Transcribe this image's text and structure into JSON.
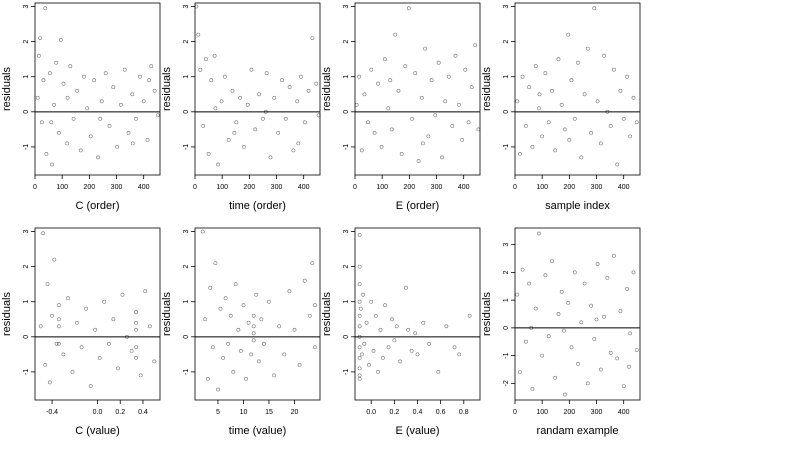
{
  "chart_data": [
    {
      "type": "scatter",
      "xlabel": "C (order)",
      "ylabel": "residuals",
      "xlim": [
        0,
        460
      ],
      "ylim": [
        -1.8,
        3.1
      ],
      "xticks": [
        0,
        100,
        200,
        300,
        400
      ],
      "yticks": [
        -1,
        0,
        1,
        2,
        3
      ],
      "hline": 0,
      "points": [
        [
          10,
          0.4
        ],
        [
          14,
          1.6
        ],
        [
          19,
          2.1
        ],
        [
          25,
          -0.3
        ],
        [
          31,
          0.9
        ],
        [
          38,
          2.95
        ],
        [
          42,
          -1.2
        ],
        [
          55,
          1.1
        ],
        [
          63,
          -1.5
        ],
        [
          70,
          0.2
        ],
        [
          78,
          1.4
        ],
        [
          88,
          -0.6
        ],
        [
          95,
          2.05
        ],
        [
          105,
          0.8
        ],
        [
          118,
          -0.9
        ],
        [
          130,
          1.3
        ],
        [
          142,
          -0.2
        ],
        [
          155,
          0.6
        ],
        [
          168,
          -1.1
        ],
        [
          180,
          1.0
        ],
        [
          192,
          0.1
        ],
        [
          205,
          -0.7
        ],
        [
          218,
          0.9
        ],
        [
          232,
          -1.3
        ],
        [
          246,
          0.3
        ],
        [
          260,
          1.1
        ],
        [
          274,
          -0.4
        ],
        [
          288,
          0.7
        ],
        [
          302,
          -1.0
        ],
        [
          316,
          0.2
        ],
        [
          330,
          1.2
        ],
        [
          344,
          -0.6
        ],
        [
          358,
          0.5
        ],
        [
          372,
          -0.2
        ],
        [
          386,
          1.0
        ],
        [
          400,
          0.3
        ],
        [
          414,
          -0.8
        ],
        [
          428,
          1.3
        ],
        [
          440,
          0.6
        ],
        [
          452,
          -0.1
        ],
        [
          60,
          -0.3
        ],
        [
          120,
          0.4
        ],
        [
          240,
          -0.2
        ],
        [
          360,
          -0.9
        ],
        [
          420,
          0.9
        ]
      ]
    },
    {
      "type": "scatter",
      "xlabel": "time (order)",
      "ylabel": "residuals",
      "xlim": [
        0,
        460
      ],
      "ylim": [
        -1.8,
        3.1
      ],
      "xticks": [
        0,
        100,
        200,
        300,
        400
      ],
      "yticks": [
        -1,
        0,
        1,
        2,
        3
      ],
      "hline": 0,
      "points": [
        [
          5,
          3.0
        ],
        [
          12,
          2.2
        ],
        [
          20,
          1.2
        ],
        [
          30,
          -0.4
        ],
        [
          40,
          1.5
        ],
        [
          50,
          -1.2
        ],
        [
          60,
          0.9
        ],
        [
          72,
          1.6
        ],
        [
          85,
          -1.5
        ],
        [
          98,
          0.3
        ],
        [
          110,
          1.0
        ],
        [
          124,
          -0.8
        ],
        [
          138,
          0.6
        ],
        [
          152,
          -0.3
        ],
        [
          166,
          0.4
        ],
        [
          180,
          -1.0
        ],
        [
          194,
          0.2
        ],
        [
          208,
          1.2
        ],
        [
          222,
          -0.5
        ],
        [
          236,
          0.5
        ],
        [
          250,
          -0.2
        ],
        [
          264,
          1.1
        ],
        [
          278,
          -1.3
        ],
        [
          292,
          0.4
        ],
        [
          306,
          -0.6
        ],
        [
          320,
          0.9
        ],
        [
          334,
          -0.2
        ],
        [
          348,
          0.7
        ],
        [
          362,
          -1.1
        ],
        [
          376,
          0.3
        ],
        [
          390,
          1.0
        ],
        [
          404,
          -0.3
        ],
        [
          418,
          0.6
        ],
        [
          432,
          2.1
        ],
        [
          446,
          0.8
        ],
        [
          455,
          -0.1
        ],
        [
          75,
          0.1
        ],
        [
          145,
          -0.6
        ],
        [
          260,
          0.0
        ],
        [
          380,
          -0.9
        ]
      ]
    },
    {
      "type": "scatter",
      "xlabel": "E (order)",
      "ylabel": "residuals",
      "xlim": [
        0,
        460
      ],
      "ylim": [
        -1.8,
        3.1
      ],
      "xticks": [
        0,
        100,
        200,
        300,
        400
      ],
      "yticks": [
        -1,
        0,
        1,
        2,
        3
      ],
      "hline": 0,
      "points": [
        [
          6,
          0.2
        ],
        [
          15,
          1.0
        ],
        [
          25,
          -1.1
        ],
        [
          35,
          0.5
        ],
        [
          48,
          -0.3
        ],
        [
          60,
          1.2
        ],
        [
          72,
          -0.6
        ],
        [
          85,
          0.8
        ],
        [
          98,
          -1.0
        ],
        [
          110,
          1.5
        ],
        [
          122,
          0.1
        ],
        [
          135,
          -0.5
        ],
        [
          148,
          2.2
        ],
        [
          160,
          0.6
        ],
        [
          172,
          -1.2
        ],
        [
          185,
          1.3
        ],
        [
          198,
          2.95
        ],
        [
          210,
          -0.2
        ],
        [
          222,
          1.1
        ],
        [
          234,
          -1.4
        ],
        [
          246,
          0.4
        ],
        [
          258,
          1.8
        ],
        [
          270,
          -0.7
        ],
        [
          282,
          0.9
        ],
        [
          295,
          -0.1
        ],
        [
          308,
          1.4
        ],
        [
          320,
          -1.3
        ],
        [
          332,
          0.3
        ],
        [
          345,
          1.0
        ],
        [
          358,
          -0.4
        ],
        [
          370,
          1.6
        ],
        [
          382,
          0.2
        ],
        [
          394,
          -0.8
        ],
        [
          406,
          1.2
        ],
        [
          418,
          -0.3
        ],
        [
          430,
          0.7
        ],
        [
          442,
          1.9
        ],
        [
          454,
          -0.5
        ],
        [
          130,
          0.9
        ],
        [
          250,
          -0.9
        ]
      ]
    },
    {
      "type": "scatter",
      "xlabel": "sample index",
      "ylabel": "residuals",
      "xlim": [
        0,
        460
      ],
      "ylim": [
        -1.8,
        3.1
      ],
      "xticks": [
        0,
        100,
        200,
        300,
        400
      ],
      "yticks": [
        -1,
        0,
        1,
        2,
        3
      ],
      "hline": 0,
      "points": [
        [
          8,
          0.3
        ],
        [
          18,
          -1.2
        ],
        [
          28,
          1.0
        ],
        [
          40,
          -0.4
        ],
        [
          52,
          0.7
        ],
        [
          64,
          -1.0
        ],
        [
          76,
          1.3
        ],
        [
          88,
          0.1
        ],
        [
          100,
          -0.7
        ],
        [
          112,
          1.1
        ],
        [
          124,
          -0.3
        ],
        [
          136,
          0.6
        ],
        [
          148,
          -1.1
        ],
        [
          160,
          1.5
        ],
        [
          172,
          0.2
        ],
        [
          184,
          -0.5
        ],
        [
          196,
          2.2
        ],
        [
          208,
          0.9
        ],
        [
          220,
          -0.2
        ],
        [
          232,
          1.4
        ],
        [
          244,
          -1.3
        ],
        [
          256,
          0.5
        ],
        [
          268,
          1.8
        ],
        [
          280,
          -0.6
        ],
        [
          292,
          2.95
        ],
        [
          304,
          0.3
        ],
        [
          316,
          -0.9
        ],
        [
          328,
          1.6
        ],
        [
          340,
          0.0
        ],
        [
          352,
          -0.4
        ],
        [
          364,
          1.2
        ],
        [
          376,
          -1.5
        ],
        [
          388,
          0.6
        ],
        [
          400,
          -0.2
        ],
        [
          412,
          1.0
        ],
        [
          424,
          -0.7
        ],
        [
          436,
          0.4
        ],
        [
          448,
          -0.3
        ],
        [
          90,
          0.5
        ],
        [
          200,
          -0.8
        ]
      ]
    },
    {
      "type": "scatter",
      "xlabel": "C (value)",
      "ylabel": "residuals",
      "xlim": [
        -0.55,
        0.55
      ],
      "ylim": [
        -1.8,
        3.1
      ],
      "xticks": [
        -0.4,
        0.0,
        0.2,
        0.4
      ],
      "xticklabels": [
        "-0.4",
        "0.0",
        "0.2",
        "0.4"
      ],
      "yticks": [
        -1,
        0,
        1,
        2,
        3
      ],
      "hline": 0,
      "points": [
        [
          -0.5,
          0.3
        ],
        [
          -0.48,
          2.95
        ],
        [
          -0.46,
          -0.8
        ],
        [
          -0.44,
          1.5
        ],
        [
          -0.42,
          -1.3
        ],
        [
          -0.4,
          0.6
        ],
        [
          -0.38,
          2.2
        ],
        [
          -0.36,
          -0.2
        ],
        [
          -0.34,
          0.9
        ],
        [
          -0.3,
          -0.5
        ],
        [
          -0.26,
          1.1
        ],
        [
          -0.22,
          -1.0
        ],
        [
          -0.18,
          0.4
        ],
        [
          -0.14,
          -0.3
        ],
        [
          -0.1,
          0.8
        ],
        [
          -0.06,
          -1.4
        ],
        [
          -0.02,
          0.2
        ],
        [
          0.02,
          -0.6
        ],
        [
          0.06,
          1.0
        ],
        [
          0.1,
          -0.2
        ],
        [
          0.14,
          0.5
        ],
        [
          0.18,
          -0.9
        ],
        [
          0.22,
          1.2
        ],
        [
          0.26,
          0.0
        ],
        [
          0.3,
          -0.4
        ],
        [
          0.34,
          0.7
        ],
        [
          0.38,
          -1.1
        ],
        [
          0.42,
          1.3
        ],
        [
          0.46,
          0.3
        ],
        [
          0.5,
          -0.7
        ],
        [
          -0.34,
          0.3
        ],
        [
          -0.34,
          -0.2
        ],
        [
          -0.34,
          0.5
        ],
        [
          0.34,
          0.2
        ],
        [
          0.34,
          -0.3
        ],
        [
          0.34,
          -0.6
        ],
        [
          0.34,
          0.4
        ]
      ]
    },
    {
      "type": "scatter",
      "xlabel": "time (value)",
      "ylabel": "residuals",
      "xlim": [
        0.5,
        25
      ],
      "ylim": [
        -1.8,
        3.1
      ],
      "xticks": [
        5,
        10,
        15,
        20
      ],
      "yticks": [
        -1,
        0,
        1,
        2,
        3
      ],
      "hline": 0,
      "points": [
        [
          2,
          3.0
        ],
        [
          2.5,
          0.5
        ],
        [
          3,
          -1.2
        ],
        [
          3.5,
          1.4
        ],
        [
          4,
          -0.3
        ],
        [
          4.5,
          2.1
        ],
        [
          5,
          -1.5
        ],
        [
          5.5,
          0.8
        ],
        [
          6,
          -0.6
        ],
        [
          6.5,
          1.1
        ],
        [
          7,
          -0.2
        ],
        [
          7.5,
          0.6
        ],
        [
          8,
          -1.0
        ],
        [
          8.5,
          1.5
        ],
        [
          9,
          0.2
        ],
        [
          9.5,
          -0.4
        ],
        [
          10,
          0.9
        ],
        [
          10.5,
          -1.2
        ],
        [
          11,
          0.4
        ],
        [
          11.5,
          -0.5
        ],
        [
          12,
          0.3
        ],
        [
          12,
          0.1
        ],
        [
          12,
          -0.1
        ],
        [
          12,
          0.6
        ],
        [
          12.5,
          1.2
        ],
        [
          13,
          -0.7
        ],
        [
          13.5,
          0.5
        ],
        [
          14,
          -0.2
        ],
        [
          15,
          1.0
        ],
        [
          16,
          -1.1
        ],
        [
          17,
          0.3
        ],
        [
          18,
          -0.5
        ],
        [
          19,
          1.3
        ],
        [
          20,
          0.2
        ],
        [
          21,
          -0.8
        ],
        [
          22,
          1.6
        ],
        [
          23,
          0.6
        ],
        [
          23.5,
          2.1
        ],
        [
          24,
          -0.3
        ],
        [
          24,
          0.9
        ]
      ]
    },
    {
      "type": "scatter",
      "xlabel": "E (value)",
      "ylabel": "residuals",
      "xlim": [
        -0.14,
        0.94
      ],
      "ylim": [
        -1.8,
        3.1
      ],
      "xticks": [
        0.0,
        0.2,
        0.4,
        0.6,
        0.8
      ],
      "xticklabels": [
        "0.0",
        "0.2",
        "0.4",
        "0.6",
        "0.8"
      ],
      "yticks": [
        -1,
        0,
        1,
        2,
        3
      ],
      "hline": 0,
      "points": [
        [
          -0.1,
          2.9
        ],
        [
          -0.1,
          2.0
        ],
        [
          -0.1,
          1.5
        ],
        [
          -0.1,
          1.0
        ],
        [
          -0.1,
          0.6
        ],
        [
          -0.1,
          0.3
        ],
        [
          -0.1,
          0.0
        ],
        [
          -0.1,
          -0.3
        ],
        [
          -0.1,
          -0.6
        ],
        [
          -0.1,
          -0.9
        ],
        [
          -0.1,
          -1.2
        ],
        [
          -0.1,
          -1.1
        ],
        [
          -0.09,
          0.8
        ],
        [
          -0.08,
          -0.5
        ],
        [
          -0.07,
          1.2
        ],
        [
          -0.06,
          -0.2
        ],
        [
          -0.04,
          0.4
        ],
        [
          -0.02,
          -0.8
        ],
        [
          0.0,
          1.0
        ],
        [
          0.02,
          -0.4
        ],
        [
          0.04,
          0.6
        ],
        [
          0.06,
          -1.0
        ],
        [
          0.08,
          0.2
        ],
        [
          0.1,
          -0.6
        ],
        [
          0.12,
          0.9
        ],
        [
          0.15,
          -0.3
        ],
        [
          0.18,
          0.5
        ],
        [
          0.2,
          -0.1
        ],
        [
          0.22,
          0.3
        ],
        [
          0.25,
          -0.7
        ],
        [
          0.3,
          1.4
        ],
        [
          0.32,
          0.2
        ],
        [
          0.35,
          -0.4
        ],
        [
          0.38,
          0.1
        ],
        [
          0.4,
          -0.5
        ],
        [
          0.45,
          0.4
        ],
        [
          0.5,
          -0.2
        ],
        [
          0.58,
          -1.0
        ],
        [
          0.65,
          0.3
        ],
        [
          0.72,
          -0.3
        ],
        [
          0.76,
          -0.5
        ],
        [
          0.85,
          0.6
        ]
      ]
    },
    {
      "type": "scatter",
      "xlabel": "randam example",
      "ylabel": "residuals",
      "xlim": [
        0,
        460
      ],
      "ylim": [
        -2.6,
        3.6
      ],
      "xticks": [
        0,
        100,
        200,
        300,
        400
      ],
      "yticks": [
        -2,
        -1,
        0,
        1,
        2,
        3
      ],
      "hline": 0,
      "points": [
        [
          8,
          1.2
        ],
        [
          18,
          -1.6
        ],
        [
          28,
          2.1
        ],
        [
          40,
          -0.5
        ],
        [
          52,
          1.6
        ],
        [
          64,
          -2.2
        ],
        [
          76,
          0.7
        ],
        [
          88,
          3.4
        ],
        [
          100,
          -1.0
        ],
        [
          112,
          1.9
        ],
        [
          124,
          -0.3
        ],
        [
          136,
          2.4
        ],
        [
          148,
          -1.8
        ],
        [
          160,
          0.5
        ],
        [
          172,
          1.3
        ],
        [
          184,
          -2.4
        ],
        [
          196,
          0.9
        ],
        [
          208,
          -0.7
        ],
        [
          220,
          2.0
        ],
        [
          232,
          -1.3
        ],
        [
          244,
          0.2
        ],
        [
          256,
          1.6
        ],
        [
          268,
          -2.0
        ],
        [
          280,
          0.8
        ],
        [
          292,
          -0.4
        ],
        [
          304,
          2.3
        ],
        [
          316,
          -1.5
        ],
        [
          328,
          0.4
        ],
        [
          340,
          1.8
        ],
        [
          352,
          -0.9
        ],
        [
          364,
          2.6
        ],
        [
          376,
          -1.1
        ],
        [
          388,
          0.6
        ],
        [
          400,
          -2.1
        ],
        [
          412,
          1.4
        ],
        [
          424,
          -0.2
        ],
        [
          436,
          2.0
        ],
        [
          448,
          -0.8
        ],
        [
          60,
          0.0
        ],
        [
          180,
          -0.1
        ],
        [
          300,
          0.3
        ],
        [
          420,
          -1.4
        ]
      ]
    }
  ]
}
